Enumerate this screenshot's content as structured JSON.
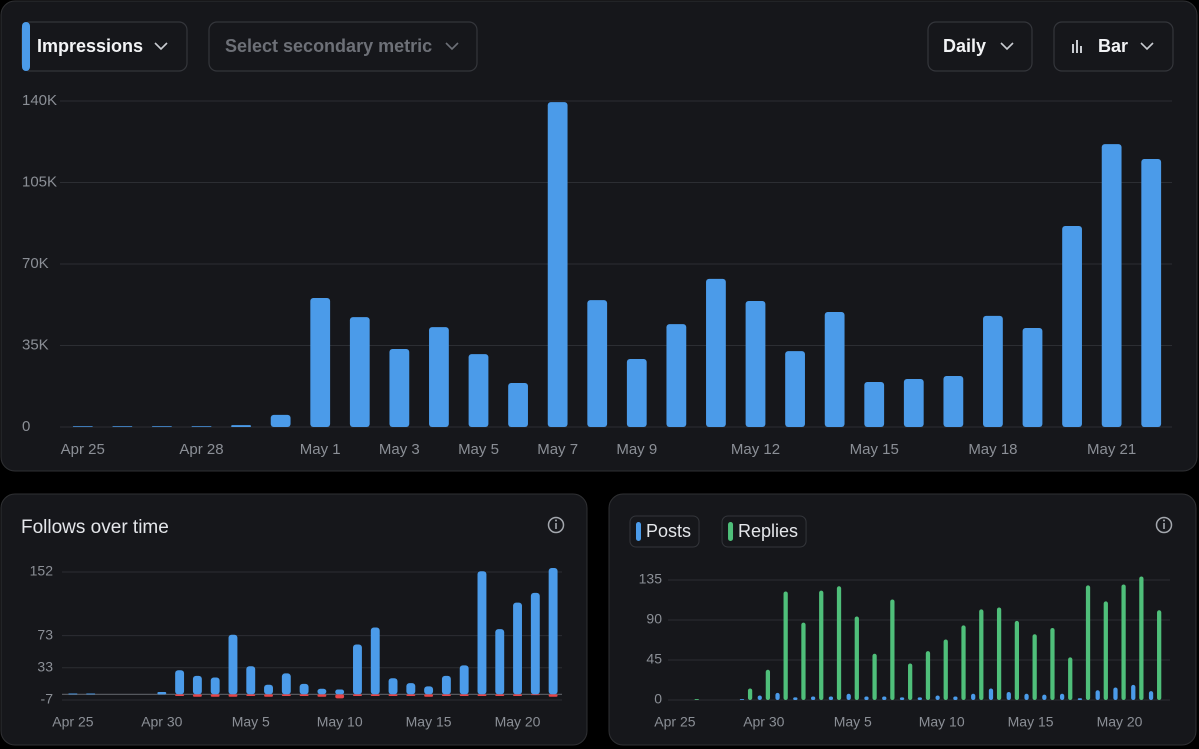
{
  "controls": {
    "primary_metric": "Impressions",
    "secondary_metric": "Select secondary metric",
    "interval": "Daily",
    "chart_type": "Bar"
  },
  "chart_data": [
    {
      "type": "bar",
      "bar_mode": "overlay",
      "categories": [
        "Apr 25",
        null,
        null,
        "Apr 28",
        null,
        null,
        "May 1",
        null,
        "May 3",
        null,
        "May 5",
        null,
        "May 7",
        null,
        "May 9",
        null,
        null,
        "May 12",
        null,
        null,
        "May 15",
        null,
        null,
        "May 18",
        null,
        null,
        "May 21",
        null
      ],
      "series": [
        {
          "color": "#4b9be9",
          "values": [
            300,
            300,
            300,
            300,
            800,
            5200,
            55400,
            47200,
            33500,
            42900,
            31300,
            18900,
            139500,
            54500,
            29200,
            44200,
            63600,
            54100,
            32600,
            49400,
            19300,
            20600,
            21900,
            47700,
            42500,
            86300,
            121500,
            115100
          ]
        }
      ],
      "ylim": [
        0,
        140000
      ],
      "yticks": [
        0,
        {
          "value": 35000,
          "label": "35K"
        },
        {
          "value": 70000,
          "label": "70K"
        },
        {
          "value": 105000,
          "label": "105K"
        },
        {
          "value": 140000,
          "label": "140K"
        }
      ],
      "grid": true
    },
    {
      "type": "bar",
      "bar_mode": "overlay",
      "title": "Follows over time",
      "categories": [
        "Apr 25",
        null,
        null,
        null,
        null,
        "Apr 30",
        null,
        null,
        null,
        null,
        "May 5",
        null,
        null,
        null,
        null,
        "May 10",
        null,
        null,
        null,
        null,
        "May 15",
        null,
        null,
        null,
        null,
        "May 20",
        null,
        null
      ],
      "series": [
        {
          "color": "#4b9be9",
          "values": [
            1,
            1,
            0,
            0,
            0,
            3,
            30,
            23,
            21,
            74,
            35,
            12,
            26,
            13,
            7,
            6,
            62,
            83,
            20,
            14,
            10,
            23,
            36,
            153,
            81,
            114,
            126,
            157
          ]
        },
        {
          "color": "#e8454a",
          "values": [
            0,
            0,
            0,
            0,
            0,
            0,
            -2,
            -3,
            -3,
            -3,
            -2,
            -3,
            -2,
            -2,
            -3,
            -5,
            -2,
            -2,
            -2,
            -2,
            -3,
            -2,
            -2,
            -2,
            -2,
            -2,
            -1,
            -3
          ]
        }
      ],
      "ylim": [
        -7,
        152
      ],
      "yticks": [
        -7,
        33,
        73,
        152
      ],
      "grid": true
    },
    {
      "type": "bar",
      "bar_mode": "grouped",
      "categories": [
        "Apr 25",
        null,
        null,
        null,
        null,
        "Apr 30",
        null,
        null,
        null,
        null,
        "May 5",
        null,
        null,
        null,
        null,
        "May 10",
        null,
        null,
        null,
        null,
        "May 15",
        null,
        null,
        null,
        null,
        "May 20",
        null,
        null
      ],
      "series": [
        {
          "name": "Posts",
          "color": "#4b9be9",
          "values": [
            0,
            0,
            0,
            0,
            1,
            5,
            8,
            3,
            4,
            4,
            7,
            4,
            4,
            3,
            3,
            5,
            4,
            7,
            13,
            9,
            7,
            6,
            7,
            2,
            11,
            14,
            17,
            10
          ]
        },
        {
          "name": "Replies",
          "color": "#4fbf7a",
          "values": [
            0,
            1,
            0,
            0,
            13,
            34,
            122,
            87,
            123,
            128,
            94,
            52,
            113,
            41,
            55,
            68,
            84,
            102,
            104,
            89,
            74,
            81,
            48,
            129,
            111,
            130,
            139,
            101
          ]
        }
      ],
      "ylim": [
        0,
        135
      ],
      "yticks": [
        0,
        45,
        90,
        135
      ],
      "grid": true
    }
  ]
}
